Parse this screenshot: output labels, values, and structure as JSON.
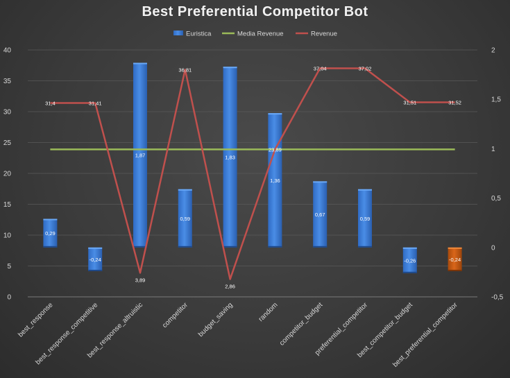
{
  "chart_data": {
    "type": "bar",
    "title": "Best Preferential Competitor Bot",
    "categories": [
      "best_response",
      "best_response_competitive",
      "best_response_altruistic",
      "competitor",
      "budget_saving",
      "random",
      "competitor_budget",
      "preferential_competitor",
      "best_competitor_budget",
      "best_preferential_competitor"
    ],
    "series": [
      {
        "name": "Euristica",
        "type": "bar",
        "axis": "right",
        "values": [
          0.29,
          -0.24,
          1.87,
          0.59,
          1.83,
          1.36,
          0.67,
          0.59,
          -0.26,
          -0.24
        ],
        "labels": [
          "0,29",
          "-0,24",
          "1,87",
          "0,59",
          "1,83",
          "1,36",
          "0,67",
          "0,59",
          "-0,26",
          "-0,24"
        ],
        "highlight_index": 9,
        "color": "#3f7fd8",
        "highlight_color": "#c55a11"
      },
      {
        "name": "Media Revenue",
        "type": "line",
        "axis": "left",
        "values": [
          23.89,
          23.89,
          23.89,
          23.89,
          23.89,
          23.89,
          23.89,
          23.89,
          23.89,
          23.89
        ],
        "label": "23,89",
        "label_index": 5,
        "color": "#9bbb59"
      },
      {
        "name": "Revenue",
        "type": "line",
        "axis": "left",
        "values": [
          31.4,
          31.41,
          3.89,
          36.81,
          2.86,
          23.89,
          37.04,
          37.02,
          31.51,
          31.52
        ],
        "labels": [
          "31,4",
          "31,41",
          "3,89",
          "36,81",
          "2,86",
          "",
          "37,04",
          "37,02",
          "31,51",
          "31,52"
        ],
        "color": "#c0504d"
      }
    ],
    "y_left": {
      "ylim": [
        0,
        40
      ],
      "ticks": [
        0,
        5,
        10,
        15,
        20,
        25,
        30,
        35,
        40
      ],
      "tick_labels": [
        "0",
        "5",
        "10",
        "15",
        "20",
        "25",
        "30",
        "35",
        "40"
      ]
    },
    "y_right": {
      "ylim": [
        -0.5,
        2
      ],
      "ticks": [
        -0.5,
        0,
        0.5,
        1,
        1.5,
        2
      ],
      "tick_labels": [
        "-0,5",
        "0",
        "0,5",
        "1",
        "1,5",
        "2"
      ]
    },
    "grid": true,
    "legend": "top"
  }
}
